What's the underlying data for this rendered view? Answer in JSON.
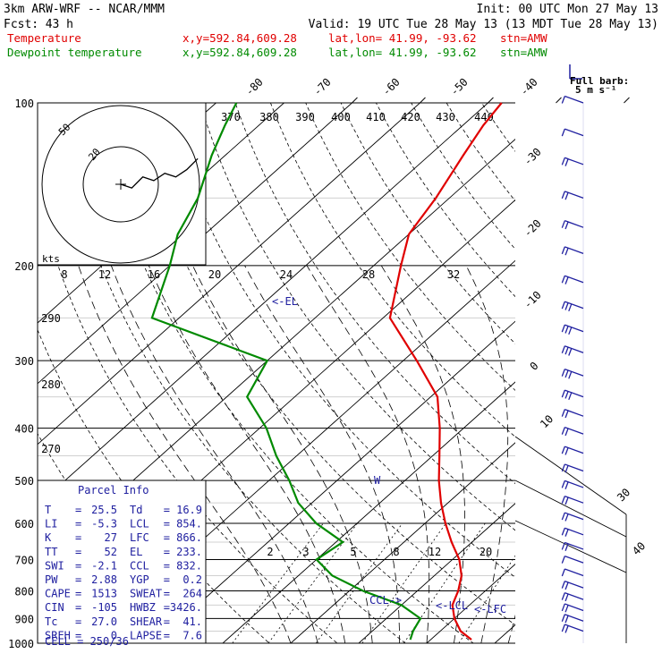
{
  "header": {
    "model": "3km ARW-WRF -- NCAR/MMM",
    "init": "Init: 00 UTC Mon 27 May 13",
    "fcst_label": "Fcst:",
    "fcst_value": "43 h",
    "valid": "Valid: 19 UTC Tue 28 May 13 (13 MDT Tue 28 May 13)",
    "temperature_line": {
      "name": "Temperature",
      "xy": "x,y=592.84,609.28",
      "latlon": "lat,lon= 41.99, -93.62",
      "stn": "stn=AMW"
    },
    "dewpoint_line": {
      "name": "Dewpoint temperature",
      "xy": "x,y=592.84,609.28",
      "latlon": "lat,lon= 41.99, -93.62",
      "stn": "stn=AMW"
    }
  },
  "barb_legend": {
    "title": "Full barb:",
    "value": "5 m s⁻¹"
  },
  "hodograph": {
    "units": "kts",
    "ring_labels": [
      "20",
      "50"
    ],
    "points": [
      [
        0,
        0
      ],
      [
        3,
        1
      ],
      [
        6,
        -2
      ],
      [
        9,
        -1
      ],
      [
        12,
        -3
      ],
      [
        15,
        -2
      ],
      [
        18,
        -4
      ],
      [
        21,
        -7
      ]
    ]
  },
  "parcel_info": {
    "title": "Parcel Info",
    "rows": [
      {
        "l1": "T",
        "v1": "25.5",
        "l2": "Td",
        "v2": "16.9"
      },
      {
        "l1": "LI",
        "v1": "-5.3",
        "l2": "LCL",
        "v2": "854."
      },
      {
        "l1": "K",
        "v1": "27",
        "l2": "LFC",
        "v2": "866."
      },
      {
        "l1": "TT",
        "v1": "52",
        "l2": "EL",
        "v2": "233."
      },
      {
        "l1": "SWI",
        "v1": "-2.1",
        "l2": "CCL",
        "v2": "832."
      },
      {
        "l1": "PW",
        "v1": "2.88",
        "l2": "YGP",
        "v2": "0.2"
      },
      {
        "l1": "CAPE",
        "v1": "1513",
        "l2": "SWEAT",
        "v2": "264"
      },
      {
        "l1": "CIN",
        "v1": "-105",
        "l2": "HWBZ",
        "v2": "3426."
      },
      {
        "l1": "Tc",
        "v1": "27.0",
        "l2": "SHEAR",
        "v2": "41."
      },
      {
        "l1": "SREH",
        "v1": "0",
        "l2": "LAPSE",
        "v2": "7.6"
      }
    ],
    "cell": "CELL = 250/36"
  },
  "annotations": {
    "el": "<-EL",
    "lcl": "<-LCL",
    "lfc": "<-LFC",
    "ccl": "CCL->",
    "marker": "W"
  },
  "colors": {
    "temperature": "#e00000",
    "dewpoint": "#008a00",
    "labels_blue": "#2020a0"
  },
  "chart_data": {
    "type": "line",
    "y_axis": "pressure (hPa)",
    "y_scale": "log",
    "ylim": [
      1000,
      100
    ],
    "pressure_levels": [
      100,
      200,
      300,
      400,
      500,
      600,
      700,
      800,
      900,
      1000
    ],
    "isotherms": [
      -80,
      -70,
      -60,
      -50,
      -40,
      -30,
      -20,
      -10,
      0,
      10,
      20,
      30,
      40
    ],
    "theta_labels": [
      "370",
      "380",
      "390",
      "400",
      "410",
      "420",
      "430",
      "440"
    ],
    "theta_lower_labels": [
      "290",
      "280",
      "270"
    ],
    "mixing_ratio_upper_labels": [
      "8",
      "12",
      "16",
      "20",
      "24",
      "28",
      "32"
    ],
    "mixing_ratio_lower_labels": [
      "2",
      "3",
      "5",
      "8",
      "12",
      "20"
    ],
    "series": [
      {
        "name": "Temperature",
        "color": "#e00000",
        "points": [
          [
            985,
            26
          ],
          [
            950,
            23
          ],
          [
            900,
            20
          ],
          [
            850,
            17.5
          ],
          [
            800,
            16
          ],
          [
            750,
            14
          ],
          [
            700,
            11
          ],
          [
            650,
            7
          ],
          [
            600,
            3
          ],
          [
            550,
            -1
          ],
          [
            500,
            -5
          ],
          [
            450,
            -9
          ],
          [
            400,
            -13.5
          ],
          [
            350,
            -19
          ],
          [
            300,
            -28
          ],
          [
            250,
            -39
          ],
          [
            200,
            -46
          ],
          [
            175,
            -50
          ],
          [
            150,
            -52
          ],
          [
            125,
            -55
          ],
          [
            110,
            -57
          ],
          [
            100,
            -58
          ]
        ]
      },
      {
        "name": "Dewpoint temperature",
        "color": "#008a00",
        "points": [
          [
            985,
            17
          ],
          [
            950,
            16
          ],
          [
            900,
            15
          ],
          [
            850,
            10
          ],
          [
            800,
            2
          ],
          [
            750,
            -5
          ],
          [
            700,
            -10
          ],
          [
            650,
            -9
          ],
          [
            600,
            -16
          ],
          [
            550,
            -22
          ],
          [
            500,
            -27
          ],
          [
            450,
            -33
          ],
          [
            400,
            -39
          ],
          [
            350,
            -47
          ],
          [
            300,
            -50
          ],
          [
            250,
            -74
          ],
          [
            200,
            -80
          ],
          [
            175,
            -84
          ],
          [
            150,
            -87
          ],
          [
            125,
            -92
          ],
          [
            110,
            -95
          ],
          [
            100,
            -97
          ]
        ]
      }
    ],
    "wind_barbs": [
      {
        "p": 100,
        "speed_ms": 10
      },
      {
        "p": 115,
        "speed_ms": 12
      },
      {
        "p": 130,
        "speed_ms": 14
      },
      {
        "p": 150,
        "speed_ms": 17
      },
      {
        "p": 170,
        "speed_ms": 18
      },
      {
        "p": 190,
        "speed_ms": 20
      },
      {
        "p": 215,
        "speed_ms": 22
      },
      {
        "p": 240,
        "speed_ms": 24
      },
      {
        "p": 265,
        "speed_ms": 25
      },
      {
        "p": 290,
        "speed_ms": 26
      },
      {
        "p": 320,
        "speed_ms": 25
      },
      {
        "p": 350,
        "speed_ms": 24
      },
      {
        "p": 380,
        "speed_ms": 22
      },
      {
        "p": 410,
        "speed_ms": 21
      },
      {
        "p": 445,
        "speed_ms": 20
      },
      {
        "p": 480,
        "speed_ms": 18
      },
      {
        "p": 515,
        "speed_ms": 17
      },
      {
        "p": 550,
        "speed_ms": 16
      },
      {
        "p": 590,
        "speed_ms": 15
      },
      {
        "p": 630,
        "speed_ms": 14
      },
      {
        "p": 670,
        "speed_ms": 13
      },
      {
        "p": 710,
        "speed_ms": 12
      },
      {
        "p": 750,
        "speed_ms": 12
      },
      {
        "p": 790,
        "speed_ms": 13
      },
      {
        "p": 830,
        "speed_ms": 14
      },
      {
        "p": 870,
        "speed_ms": 15
      },
      {
        "p": 910,
        "speed_ms": 16
      },
      {
        "p": 950,
        "speed_ms": 17
      }
    ]
  }
}
